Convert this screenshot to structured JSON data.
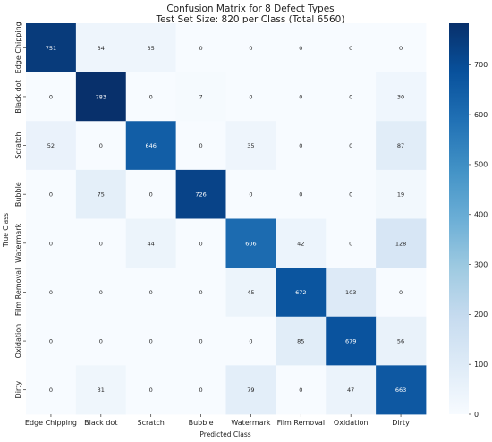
{
  "chart_data": {
    "type": "heatmap",
    "title": "Confusion Matrix for 8 Defect Types",
    "subtitle": "Test Set Size: 820 per Class (Total 6560)",
    "xlabel": "Predicted Class",
    "ylabel": "True Class",
    "x_categories": [
      "Edge Chipping",
      "Black dot",
      "Scratch",
      "Bubble",
      "Watermark",
      "Film Removal",
      "Oxidation",
      "Dirty"
    ],
    "y_categories": [
      "Edge Chipping",
      "Black dot",
      "Scratch",
      "Bubble",
      "Watermark",
      "Film Removal",
      "Oxidation",
      "Dirty"
    ],
    "values": [
      [
        751,
        34,
        35,
        0,
        0,
        0,
        0,
        0
      ],
      [
        0,
        783,
        0,
        7,
        0,
        0,
        0,
        30
      ],
      [
        52,
        0,
        646,
        0,
        35,
        0,
        0,
        87
      ],
      [
        0,
        75,
        0,
        726,
        0,
        0,
        0,
        19
      ],
      [
        0,
        0,
        44,
        0,
        606,
        42,
        0,
        128
      ],
      [
        0,
        0,
        0,
        0,
        45,
        672,
        103,
        0
      ],
      [
        0,
        0,
        0,
        0,
        0,
        85,
        679,
        56
      ],
      [
        0,
        31,
        0,
        0,
        79,
        0,
        47,
        663
      ]
    ],
    "colorscale": "Blues",
    "vmin": 0,
    "vmax": 783,
    "colorbar_ticks": [
      0,
      100,
      200,
      300,
      400,
      500,
      600,
      700
    ]
  }
}
